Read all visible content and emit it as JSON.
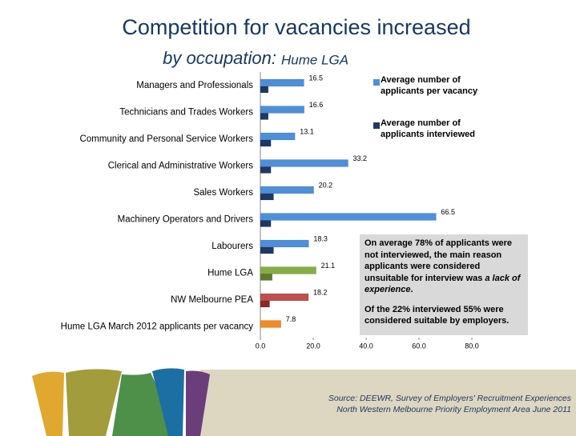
{
  "chart_data": {
    "type": "bar",
    "orientation": "horizontal",
    "title": "Competition for vacancies increased",
    "subtitle": "by occupation:",
    "subtitle_region": "Hume LGA",
    "categories": [
      "Managers and Professionals",
      "Technicians and Trades Workers",
      "Community and Personal Service Workers",
      "Clerical and Administrative Workers",
      "Sales Workers",
      "Machinery Operators and Drivers",
      "Labourers",
      "Hume LGA",
      "NW Melbourne PEA",
      "Hume LGA March 2012 applicants per vacancy"
    ],
    "series": [
      {
        "name": "Average number of applicants per vacancy",
        "color": "#4f8fd9",
        "colors": [
          "#4f8fd9",
          "#4f8fd9",
          "#4f8fd9",
          "#4f8fd9",
          "#4f8fd9",
          "#4f8fd9",
          "#4f8fd9",
          "#86ac45",
          "#c0504d",
          "#f08a24"
        ],
        "values": [
          16.5,
          16.6,
          13.1,
          33.2,
          20.2,
          66.5,
          18.3,
          21.1,
          18.2,
          7.8
        ]
      },
      {
        "name": "Average number of applicants interviewed",
        "color": "#1f3864",
        "colors": [
          "#1f3864",
          "#1f3864",
          "#1f3864",
          "#1f3864",
          "#1f3864",
          "#1f3864",
          "#1f3864",
          "#5e7a2e",
          "#8b2a28",
          null
        ],
        "values": [
          3.0,
          3.0,
          4.0,
          4.0,
          5.0,
          4.0,
          5.0,
          4.5,
          3.5,
          null
        ]
      }
    ],
    "xlim": [
      0,
      90
    ],
    "xticks": [
      {
        "value": 0,
        "label": "0.0"
      },
      {
        "value": 20,
        "label": "20.0"
      },
      {
        "value": 40,
        "label": "40.0"
      },
      {
        "value": 60,
        "label": "60.0"
      },
      {
        "value": 80,
        "label": "80.0"
      }
    ],
    "annotation": {
      "paragraphs": [
        [
          "On average 78% of applicants were not interviewed, the main reason applicants were considered unsuitable for interview was ",
          "a lack of experience",
          "."
        ],
        [
          "Of the 22% interviewed 55% were considered suitable by employers."
        ]
      ]
    },
    "source": [
      "Source: DEEWR, Survey of Employers' Recruitment Experiences",
      "North Western Melbourne Priority Employment Area June 2011"
    ]
  }
}
